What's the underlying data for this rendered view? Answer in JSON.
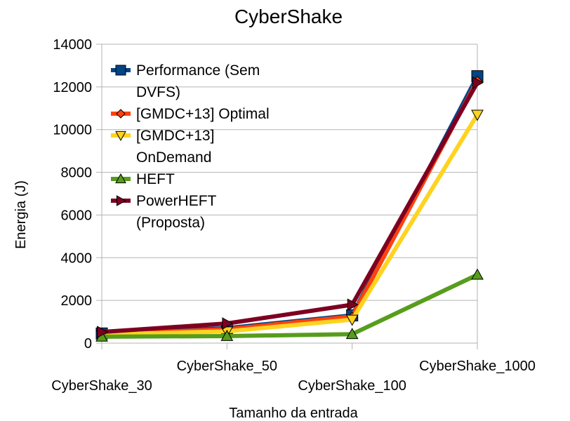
{
  "chart_data": {
    "type": "line",
    "title": "CyberShake",
    "xlabel": "Tamanho da entrada",
    "ylabel": "Energia (J)",
    "categories": [
      "CyberShake_30",
      "CyberShake_50",
      "CyberShake_100",
      "CyberShake_1000"
    ],
    "ylim": [
      0,
      14000
    ],
    "yticks": [
      "0",
      "2000",
      "4000",
      "6000",
      "8000",
      "10000",
      "12000",
      "14000"
    ],
    "grid": "horizontal",
    "legend_position": "top-left",
    "series": [
      {
        "name": "Performance (Sem DVFS)",
        "legend_lines": [
          "Performance (Sem",
          "DVFS)"
        ],
        "values": [
          450,
          700,
          1300,
          12500
        ],
        "color": "#004586",
        "marker": "square"
      },
      {
        "name": "[GMDC+13] Optimal",
        "legend_lines": [
          "[GMDC+13] Optimal"
        ],
        "values": [
          420,
          650,
          1250,
          12300
        ],
        "color": "#ff420e",
        "marker": "diamond"
      },
      {
        "name": "[GMDC+13] OnDemand",
        "legend_lines": [
          "[GMDC+13]",
          "OnDemand"
        ],
        "values": [
          400,
          550,
          1100,
          10700
        ],
        "color": "#ffd320",
        "marker": "triangle-down"
      },
      {
        "name": "HEFT",
        "legend_lines": [
          "HEFT"
        ],
        "values": [
          300,
          330,
          420,
          3200
        ],
        "color": "#579d1c",
        "marker": "triangle-up"
      },
      {
        "name": "PowerHEFT (Proposta)",
        "legend_lines": [
          "PowerHEFT",
          "(Proposta)"
        ],
        "values": [
          520,
          920,
          1800,
          12200
        ],
        "color": "#7e0021",
        "marker": "triangle-right"
      }
    ]
  }
}
